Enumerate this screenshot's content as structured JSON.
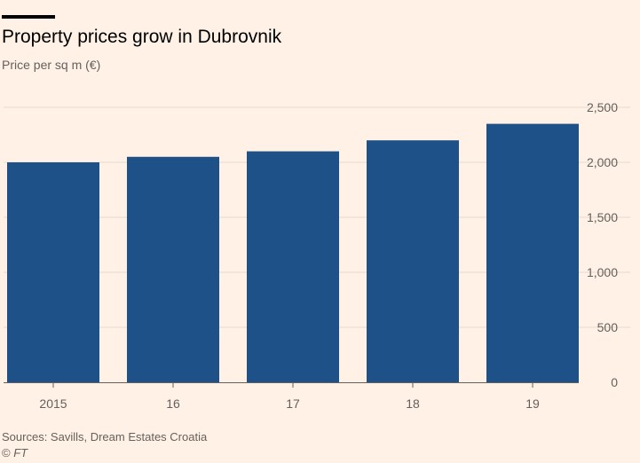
{
  "header": {
    "title": "Property prices grow in Dubrovnik",
    "subtitle": "Price per sq m (€)"
  },
  "footer": {
    "sources": "Sources: Savills, Dream Estates Croatia",
    "copyright_symbol": "©",
    "copyright_owner": "FT"
  },
  "colors": {
    "background": "#fff1e5",
    "bar": "#1e5187",
    "gridline": "#e6d9ce",
    "baseline": "#66605c",
    "text_muted": "#66605c"
  },
  "chart_data": {
    "type": "bar",
    "title": "Property prices grow in Dubrovnik",
    "ylabel": "Price per sq m (€)",
    "xlabel": "",
    "categories": [
      "2015",
      "16",
      "17",
      "18",
      "19"
    ],
    "values": [
      2000,
      2050,
      2100,
      2200,
      2350
    ],
    "ylim": [
      0,
      2500
    ],
    "yticks": [
      0,
      500,
      1000,
      1500,
      2000,
      2500
    ],
    "ytick_labels": [
      "0",
      "500",
      "1,000",
      "1,500",
      "2,000",
      "2,500"
    ],
    "y_axis_position": "right",
    "grid": true,
    "legend": "none"
  }
}
